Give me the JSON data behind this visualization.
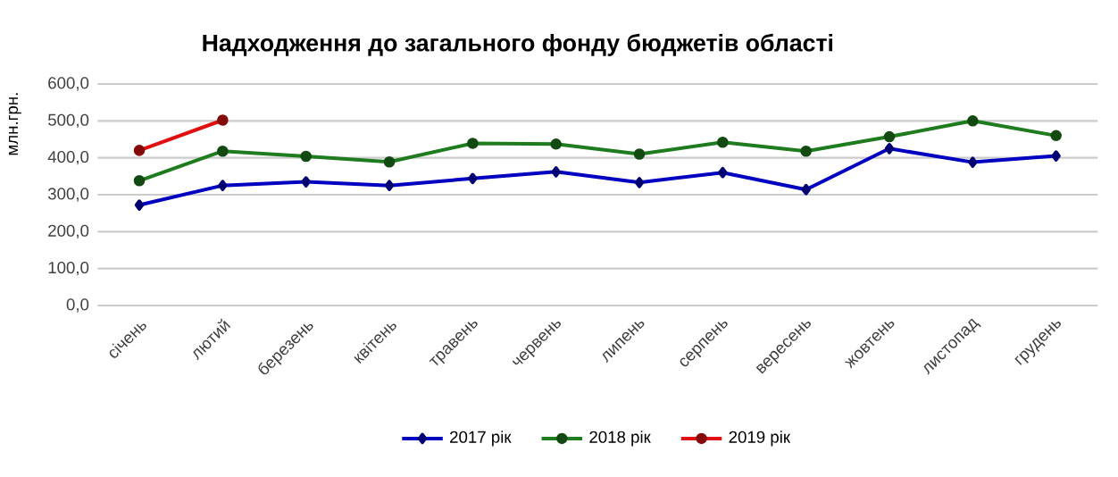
{
  "chart_data": {
    "type": "line",
    "title": "Надходження до загального фонду бюджетів області",
    "ylabel": "млн.грн.",
    "categories": [
      "січень",
      "лютий",
      "березень",
      "квітень",
      "травень",
      "червень",
      "липень",
      "серпень",
      "вересень",
      "жовтень",
      "листопад",
      "грудень"
    ],
    "series": [
      {
        "name": "2017 рік",
        "color": "#0000c0",
        "marker": "diamond",
        "values": [
          272,
          325,
          335,
          325,
          344,
          362,
          333,
          360,
          314,
          425,
          388,
          405
        ]
      },
      {
        "name": "2018 рік",
        "color": "#1e7b1e",
        "marker": "circle",
        "values": [
          338,
          418,
          404,
          389,
          439,
          437,
          410,
          442,
          418,
          457,
          500,
          460
        ]
      },
      {
        "name": "2019 рік",
        "color": "#e01010",
        "marker": "circle",
        "values": [
          420,
          502,
          null,
          null,
          null,
          null,
          null,
          null,
          null,
          null,
          null,
          null
        ]
      }
    ],
    "ylim": [
      0,
      600
    ],
    "yticks": [
      {
        "value": 0,
        "label": "0,0"
      },
      {
        "value": 100,
        "label": "100,0"
      },
      {
        "value": 200,
        "label": "200,0"
      },
      {
        "value": 300,
        "label": "300,0"
      },
      {
        "value": 400,
        "label": "400,0"
      },
      {
        "value": 500,
        "label": "500,0"
      },
      {
        "value": 600,
        "label": "600,0"
      }
    ],
    "grid": "y",
    "legend": "bottom",
    "line_style": "solid"
  }
}
